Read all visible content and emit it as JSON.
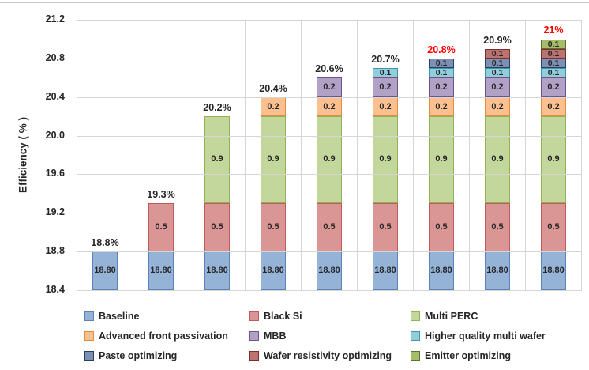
{
  "chart_data": {
    "type": "bar",
    "stacked": true,
    "title": "",
    "xlabel": "",
    "ylabel": "Efficiency ( % )",
    "ylim": [
      18.4,
      21.2
    ],
    "ytick_labels": [
      "21.2",
      "20.8",
      "20.4",
      "20.0",
      "19.6",
      "19.2",
      "18.8",
      "18.4"
    ],
    "grid": true,
    "legend_position": "bottom",
    "bar_count": 9,
    "bar_totals": [
      {
        "text": "18.8%",
        "color": "#262626"
      },
      {
        "text": "19.3%",
        "color": "#262626"
      },
      {
        "text": "20.2%",
        "color": "#262626"
      },
      {
        "text": "20.4%",
        "color": "#262626"
      },
      {
        "text": "20.6%",
        "color": "#262626"
      },
      {
        "text": "20.7%",
        "color": "#262626"
      },
      {
        "text": "20.8%",
        "color": "#ff0000"
      },
      {
        "text": "20.9%",
        "color": "#262626"
      },
      {
        "text": "21%",
        "color": "#ff0000"
      }
    ],
    "series": [
      {
        "name": "Baseline",
        "fill": "#95b3d7",
        "border": "#5b83b6",
        "segment_label": "18.80",
        "absolute": true,
        "values": [
          18.8,
          18.8,
          18.8,
          18.8,
          18.8,
          18.8,
          18.8,
          18.8,
          18.8
        ]
      },
      {
        "name": "Black Si",
        "fill": "#d99694",
        "border": "#be5a58",
        "segment_label": "0.5",
        "values": [
          0,
          0.5,
          0.5,
          0.5,
          0.5,
          0.5,
          0.5,
          0.5,
          0.5
        ]
      },
      {
        "name": "Multi PERC",
        "fill": "#c3d69b",
        "border": "#94b054",
        "segment_label": "0.9",
        "values": [
          0,
          0,
          0.9,
          0.9,
          0.9,
          0.9,
          0.9,
          0.9,
          0.9
        ]
      },
      {
        "name": "Advanced front passivation",
        "fill": "#fac090",
        "border": "#e08d3f",
        "segment_label": "0.2",
        "values": [
          0,
          0,
          0,
          0.2,
          0.2,
          0.2,
          0.2,
          0.2,
          0.2
        ]
      },
      {
        "name": "MBB",
        "fill": "#b2a1c7",
        "border": "#6e548d",
        "segment_label": "0.2",
        "values": [
          0,
          0,
          0,
          0,
          0.2,
          0.2,
          0.2,
          0.2,
          0.2
        ]
      },
      {
        "name": "Higher quality multi wafer",
        "fill": "#92cddc",
        "border": "#3d96ac",
        "segment_label": "0.1",
        "values": [
          0,
          0,
          0,
          0,
          0,
          0.1,
          0.1,
          0.1,
          0.1
        ]
      },
      {
        "name": "Paste optimizing",
        "fill": "#7c90b4",
        "border": "#263f63",
        "segment_label": "0.1",
        "values": [
          0,
          0,
          0,
          0,
          0,
          0,
          0.1,
          0.1,
          0.1
        ]
      },
      {
        "name": "Wafer resistivity optimizing",
        "fill": "#ba7370",
        "border": "#77302c",
        "segment_label": "0.1",
        "values": [
          0,
          0,
          0,
          0,
          0,
          0,
          0,
          0.1,
          0.1
        ]
      },
      {
        "name": "Emitter optimizing",
        "fill": "#a7bc6b",
        "border": "#5a7030",
        "segment_label": "0.1",
        "values": [
          0,
          0,
          0,
          0,
          0,
          0,
          0,
          0,
          0.1
        ]
      }
    ],
    "legend_columns": [
      [
        "Baseline",
        "Advanced front passivation",
        "Paste optimizing"
      ],
      [
        "Black Si",
        "MBB",
        "Wafer resistivity optimizing"
      ],
      [
        "Multi PERC",
        "Higher quality multi wafer",
        "Emitter optimizing"
      ]
    ]
  }
}
